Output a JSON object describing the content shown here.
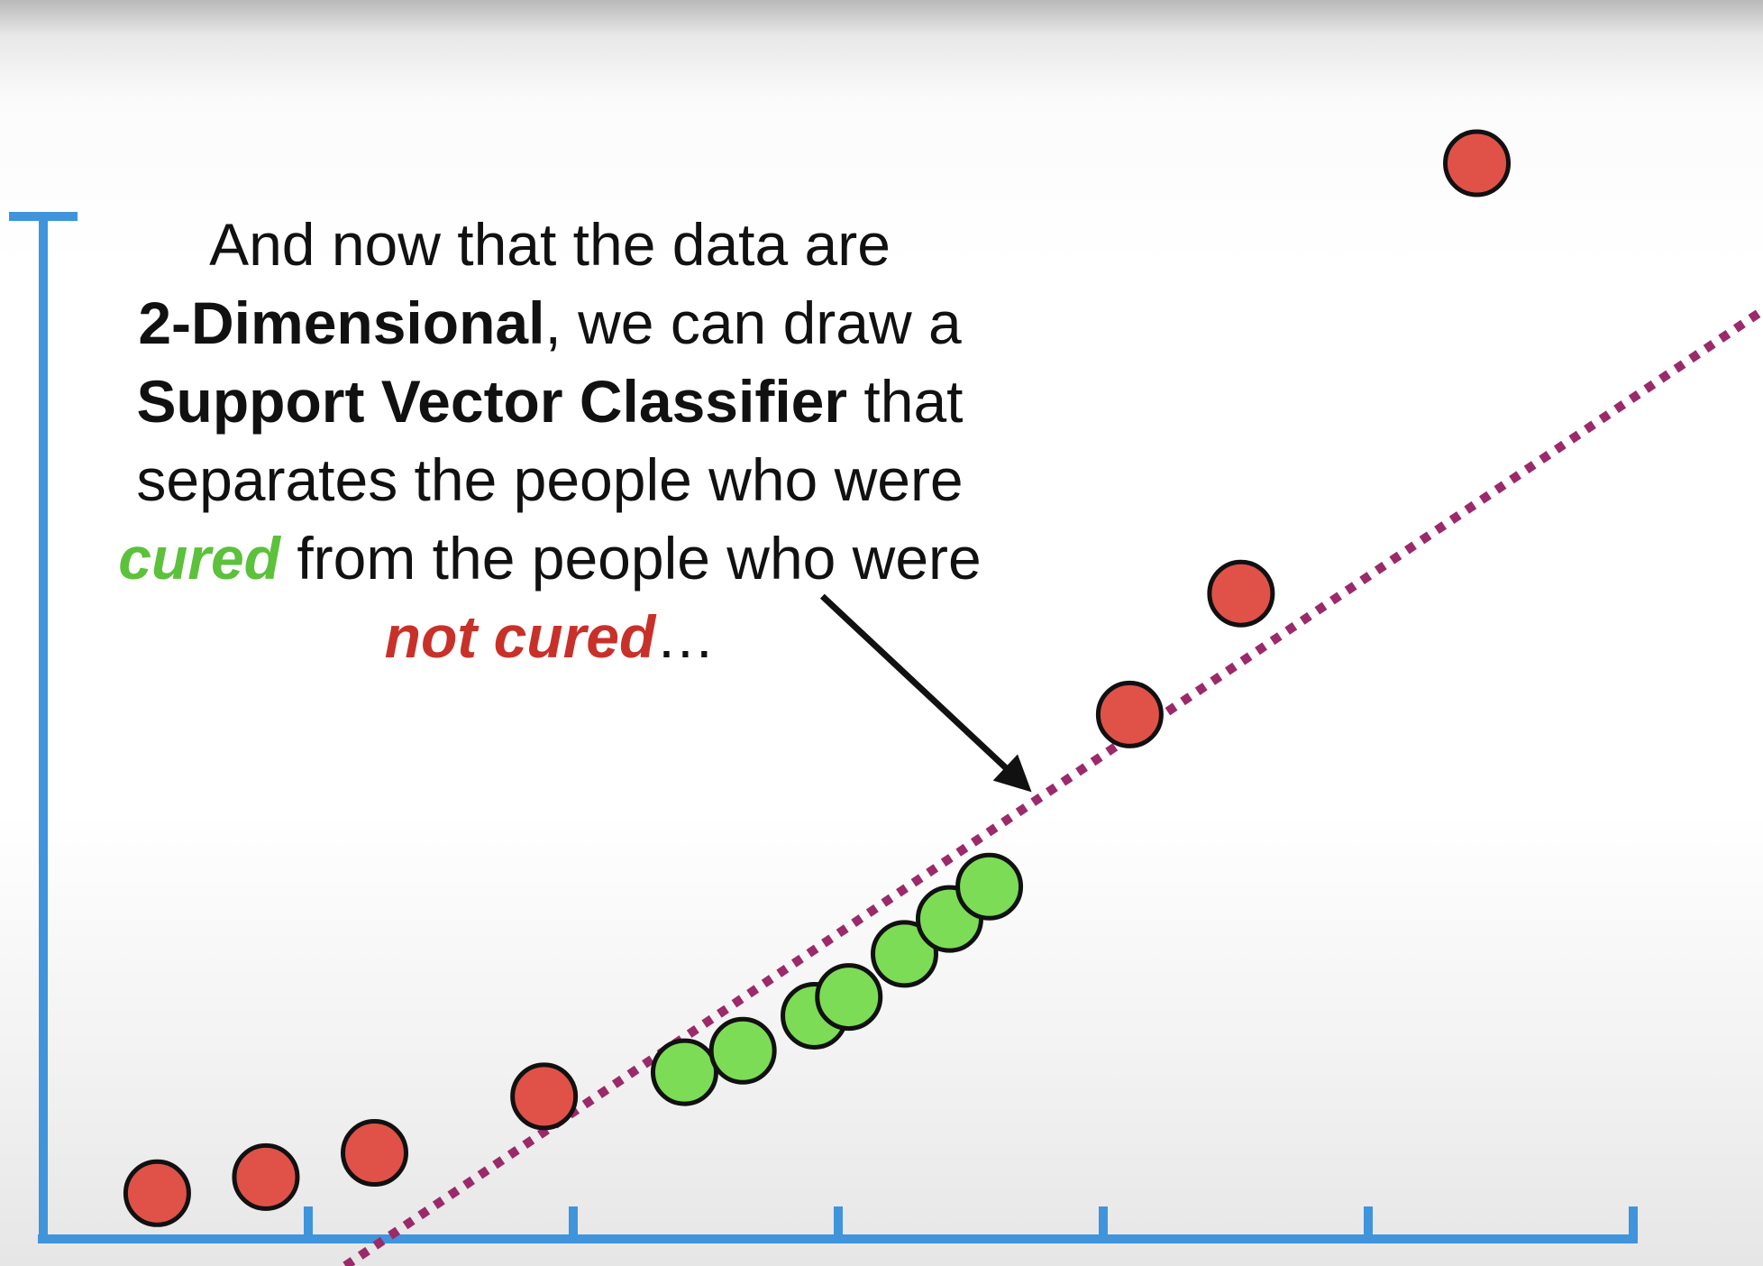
{
  "caption": {
    "line1": "And now that the data are",
    "line2_bold": "2-Dimensional",
    "line2_rest": ", we can draw a",
    "line3_bold": "Support Vector Classifier",
    "line3_rest": " that",
    "line4": "separates the people who were",
    "line5_cured": "cured",
    "line5_rest": " from the people who were",
    "line6_notcured": "not cured",
    "line6_rest": "…"
  },
  "colors": {
    "axis": "#3f94dc",
    "cured": "#7ddc55",
    "not_cured": "#e05248",
    "classifier_line": "#9b2a6a",
    "arrow": "#111111",
    "cured_text": "#5cc13b",
    "not_cured_text": "#c8312a"
  },
  "chart_data": {
    "type": "scatter",
    "xlim": [
      0,
      6
    ],
    "ylim": [
      0,
      4
    ],
    "x_ticks": [
      0,
      1,
      2,
      3,
      4,
      5,
      6
    ],
    "grid": false,
    "series": [
      {
        "class": "not_cured",
        "points": [
          [
            0.43,
            0.17
          ],
          [
            0.84,
            0.23
          ],
          [
            1.25,
            0.32
          ],
          [
            1.89,
            0.53
          ],
          [
            4.1,
            1.95
          ],
          [
            4.52,
            2.4
          ],
          [
            5.41,
            4.0
          ]
        ]
      },
      {
        "class": "cured",
        "points": [
          [
            2.42,
            0.62
          ],
          [
            2.64,
            0.7
          ],
          [
            2.91,
            0.83
          ],
          [
            3.04,
            0.9
          ],
          [
            3.25,
            1.06
          ],
          [
            3.42,
            1.19
          ],
          [
            3.57,
            1.31
          ]
        ]
      }
    ],
    "classifier": {
      "style": "dotted",
      "points": [
        [
          1.14,
          -0.1
        ],
        [
          6.5,
          3.46
        ]
      ]
    },
    "annotation_arrow": {
      "from": [
        2.94,
        2.39
      ],
      "to": [
        3.71,
        1.68
      ]
    }
  }
}
